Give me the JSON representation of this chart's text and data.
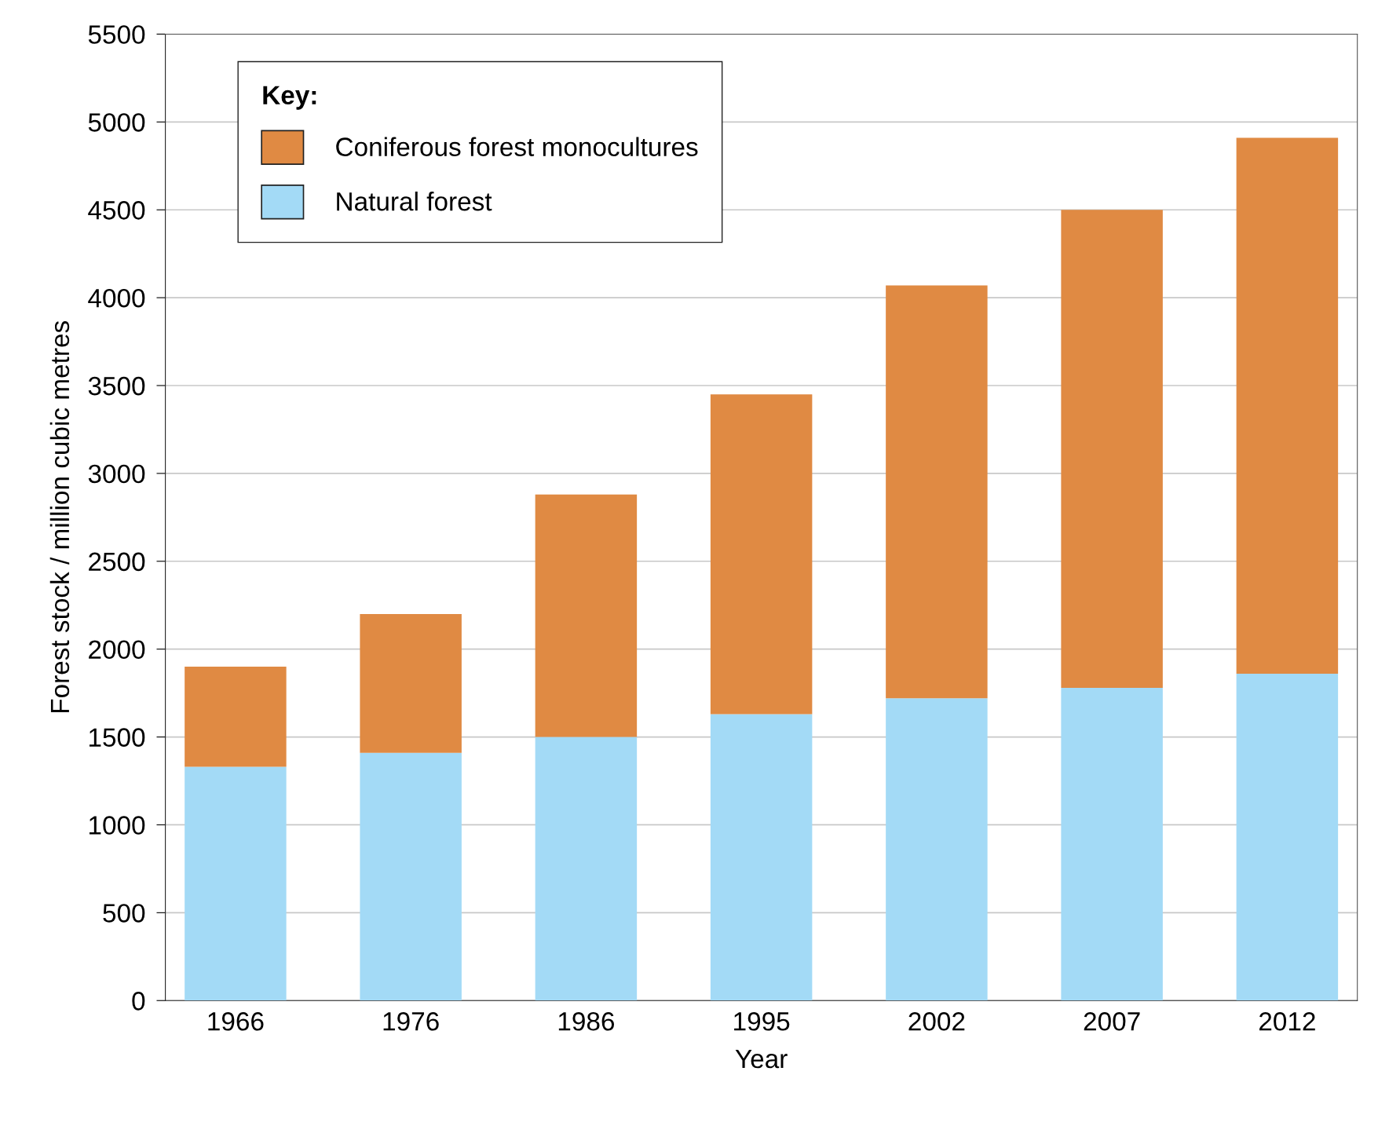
{
  "chart_data": {
    "type": "bar",
    "stacked": true,
    "xlabel": "Year",
    "ylabel": "Forest stock / million cubic metres",
    "legend_title": "Key:",
    "categories": [
      "1966",
      "1976",
      "1986",
      "1995",
      "2002",
      "2007",
      "2012"
    ],
    "series": [
      {
        "name": "Natural forest",
        "color": "#a3daf6",
        "values": [
          1330,
          1410,
          1500,
          1630,
          1720,
          1780,
          1860
        ]
      },
      {
        "name": "Coniferous forest monocultures",
        "color": "#e08a43",
        "values": [
          570,
          790,
          1380,
          1820,
          2350,
          2720,
          3050
        ]
      }
    ],
    "ylim": [
      0,
      5500
    ],
    "yticks": [
      0,
      500,
      1000,
      1500,
      2000,
      2500,
      3000,
      3500,
      4000,
      4500,
      5000,
      5500
    ],
    "grid": "y",
    "legend": "top left"
  }
}
